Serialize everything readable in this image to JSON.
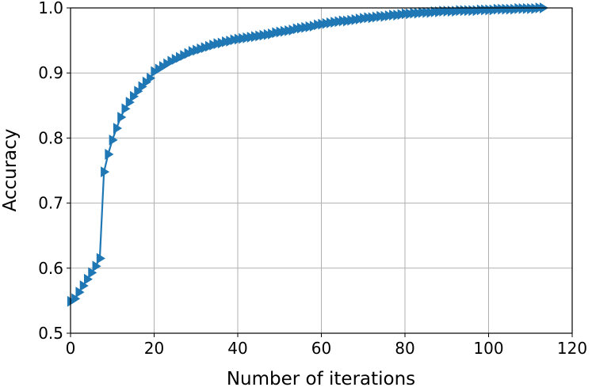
{
  "chart_data": {
    "type": "line",
    "xlabel": "Number of iterations",
    "ylabel": "Accuracy",
    "xlim": [
      0,
      120
    ],
    "xticks": [
      0,
      20,
      40,
      60,
      80,
      100,
      120
    ],
    "ylim": [
      0.5,
      1.0
    ],
    "yticks": [
      0.5,
      0.6,
      0.7,
      0.8,
      0.9,
      {
        "value": 1.0,
        "label": "1.0"
      }
    ],
    "grid": true,
    "marker": "triangle-right",
    "x": [
      0,
      1,
      2,
      3,
      4,
      5,
      6,
      7,
      8,
      9,
      10,
      11,
      12,
      13,
      14,
      15,
      16,
      17,
      18,
      19,
      20,
      21,
      22,
      23,
      24,
      25,
      26,
      27,
      28,
      29,
      30,
      31,
      32,
      33,
      34,
      35,
      36,
      37,
      38,
      39,
      40,
      41,
      42,
      43,
      44,
      45,
      46,
      47,
      48,
      49,
      50,
      51,
      52,
      53,
      54,
      55,
      56,
      57,
      58,
      59,
      60,
      61,
      62,
      63,
      64,
      65,
      66,
      67,
      68,
      69,
      70,
      71,
      72,
      73,
      74,
      75,
      76,
      77,
      78,
      79,
      80,
      81,
      82,
      83,
      84,
      85,
      86,
      87,
      88,
      89,
      90,
      91,
      92,
      93,
      94,
      95,
      96,
      97,
      98,
      99,
      100,
      101,
      102,
      103,
      104,
      105,
      106,
      107,
      108,
      109,
      110,
      111,
      112,
      113
    ],
    "series": [
      {
        "color": "#1f77b4",
        "values": [
          0.549,
          0.553,
          0.563,
          0.573,
          0.583,
          0.593,
          0.603,
          0.615,
          0.748,
          0.775,
          0.797,
          0.815,
          0.832,
          0.845,
          0.855,
          0.864,
          0.872,
          0.879,
          0.886,
          0.892,
          0.902,
          0.906,
          0.91,
          0.914,
          0.918,
          0.921,
          0.924,
          0.927,
          0.93,
          0.933,
          0.935,
          0.937,
          0.939,
          0.941,
          0.943,
          0.945,
          0.946,
          0.948,
          0.949,
          0.951,
          0.952,
          0.953,
          0.954,
          0.955,
          0.956,
          0.957,
          0.958,
          0.959,
          0.96,
          0.962,
          0.963,
          0.964,
          0.965,
          0.966,
          0.968,
          0.969,
          0.97,
          0.971,
          0.972,
          0.974,
          0.975,
          0.976,
          0.977,
          0.978,
          0.979,
          0.98,
          0.98,
          0.981,
          0.982,
          0.983,
          0.984,
          0.985,
          0.985,
          0.986,
          0.987,
          0.987,
          0.988,
          0.989,
          0.989,
          0.99,
          0.991,
          0.991,
          0.992,
          0.992,
          0.993,
          0.993,
          0.993,
          0.994,
          0.994,
          0.995,
          0.995,
          0.995,
          0.995,
          0.996,
          0.996,
          0.996,
          0.996,
          0.996,
          0.997,
          0.997,
          0.997,
          0.997,
          0.998,
          0.998,
          0.998,
          0.998,
          0.998,
          0.999,
          0.999,
          0.999,
          0.999,
          0.999,
          1.0,
          1.0
        ]
      }
    ]
  }
}
